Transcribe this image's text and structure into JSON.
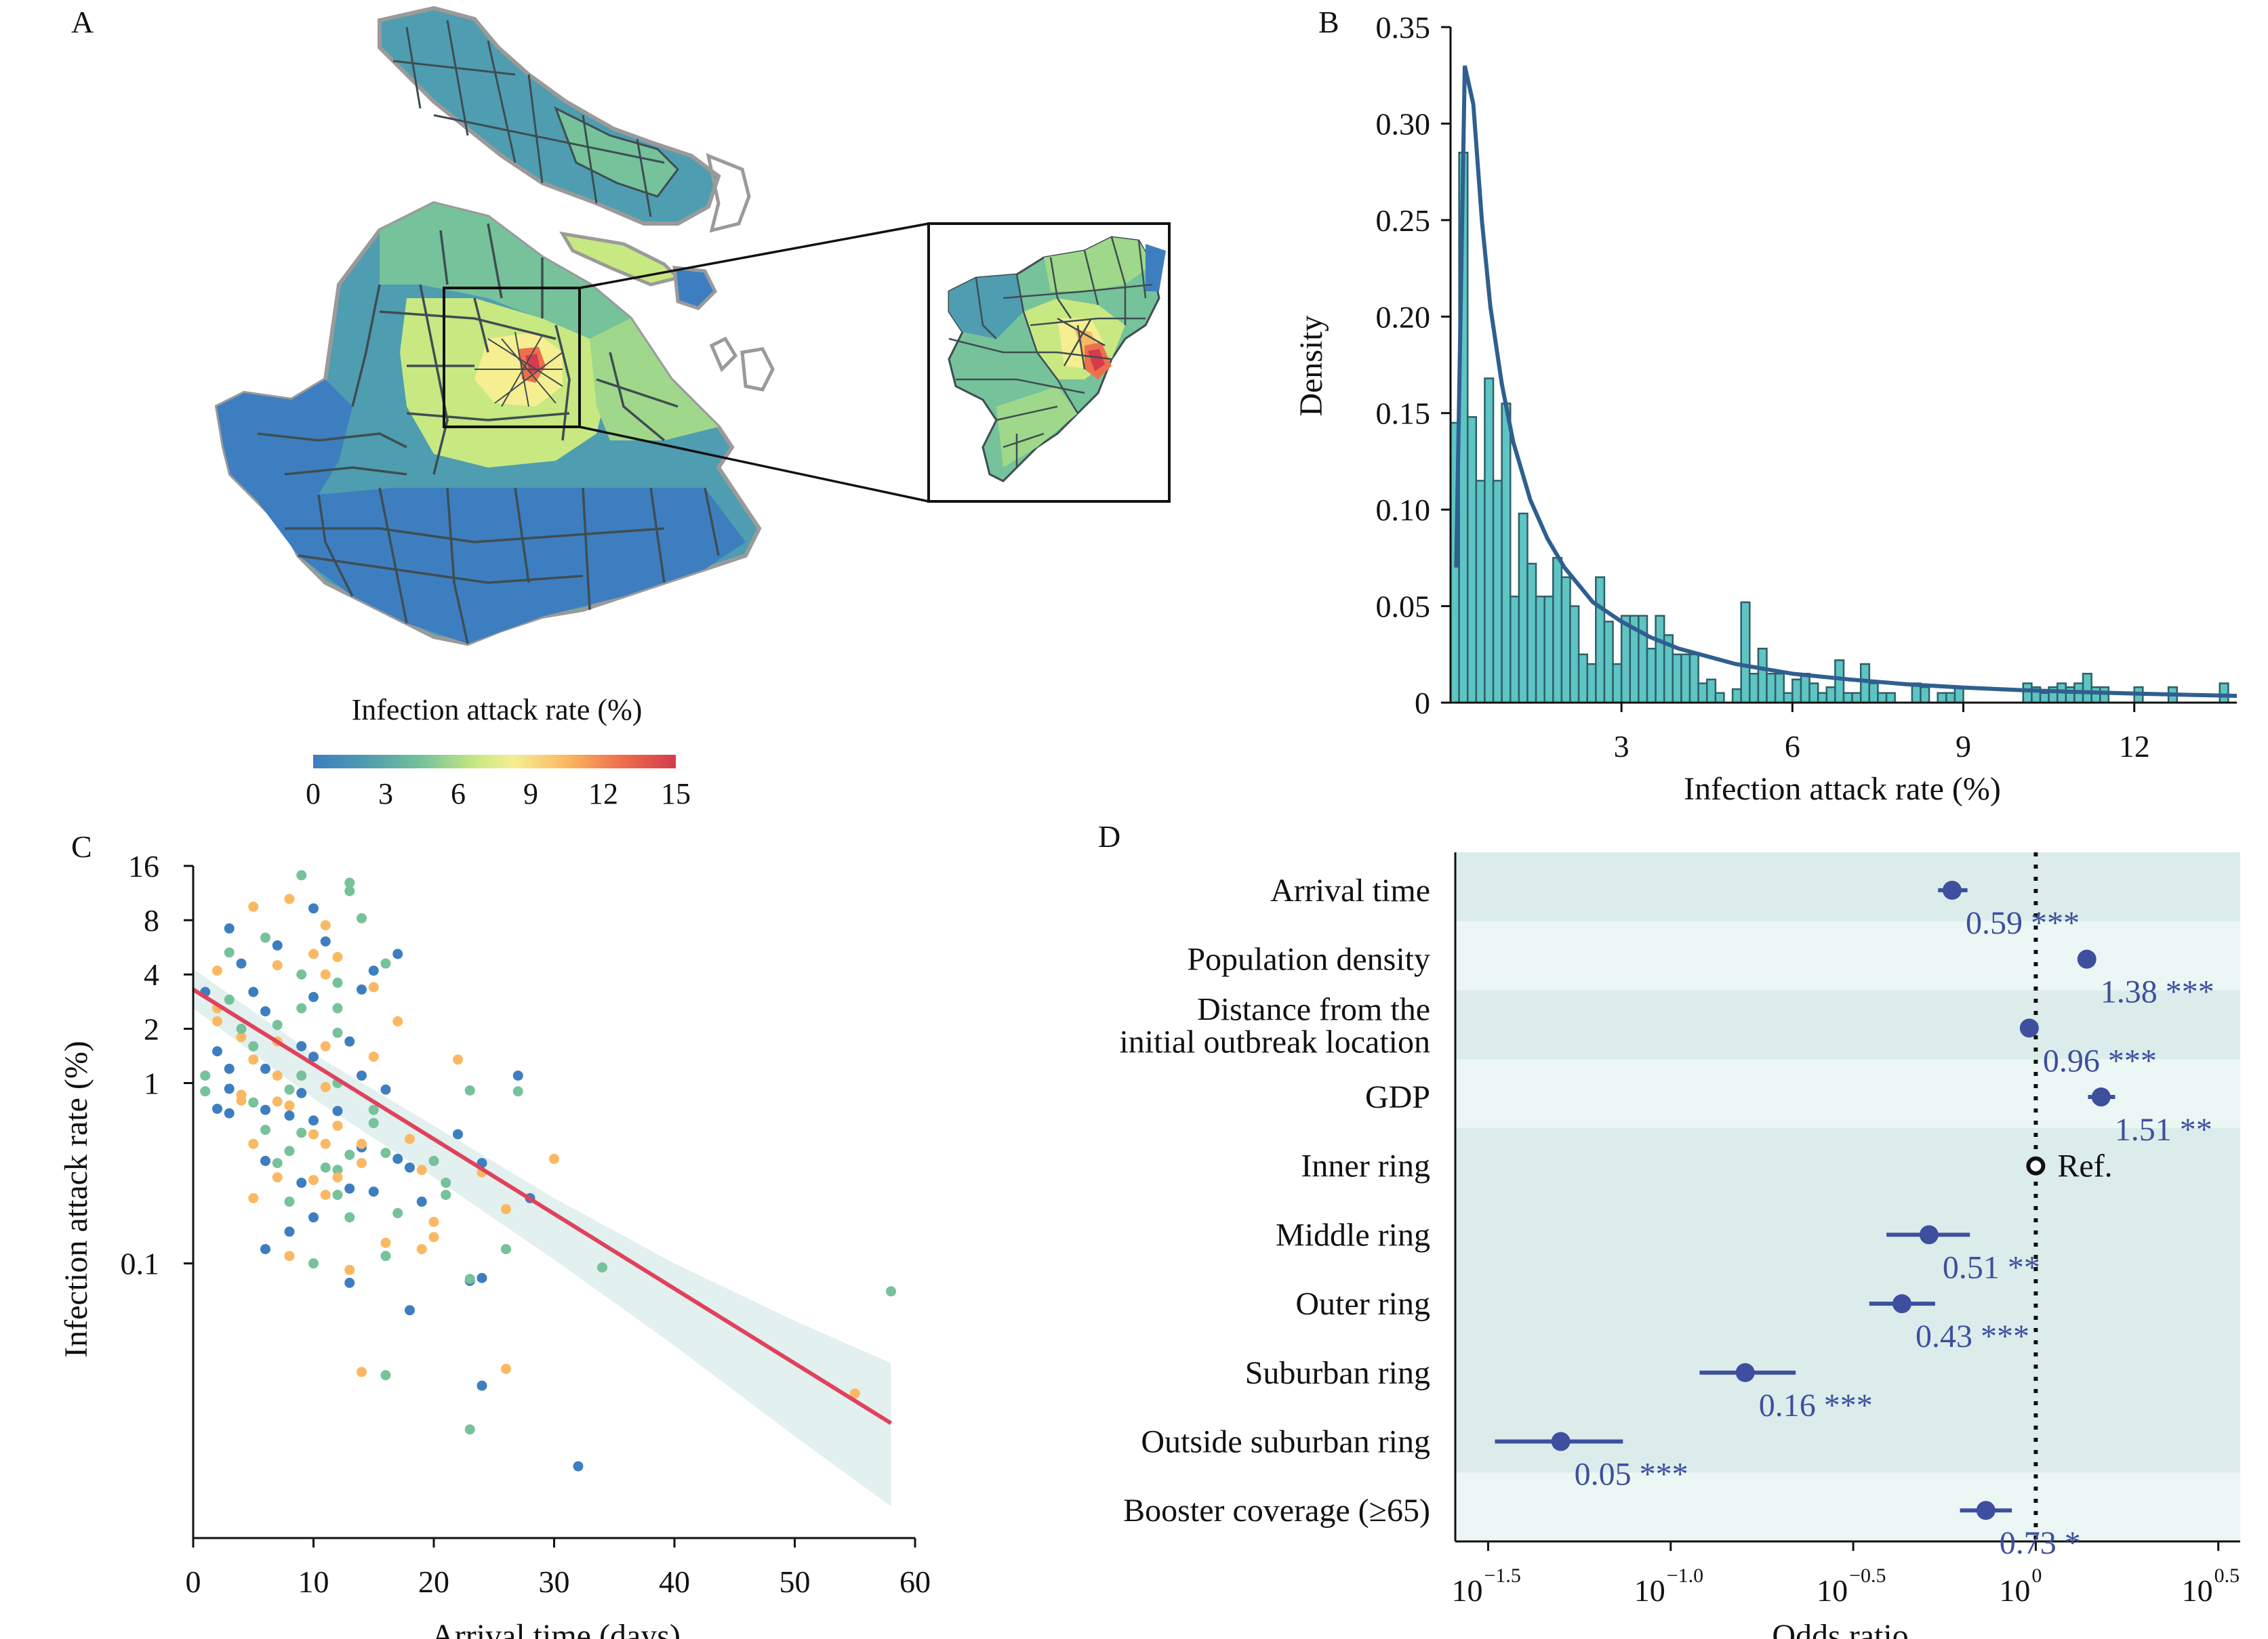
{
  "panels": {
    "a": "A",
    "b": "B",
    "c": "C",
    "d": "D"
  },
  "colors": {
    "scale": [
      "#3d7ec0",
      "#4f9db0",
      "#76c29a",
      "#c8e882",
      "#f5ef92",
      "#fbb862",
      "#ee6f4c",
      "#d63a4c"
    ],
    "region_outline": "#9a9a9a",
    "district_line": "#3f4d52",
    "hist_fill": "#5ec4c4",
    "hist_edge": "#2f5f66",
    "density_curve": "#2f5f8f",
    "fit_line": "#e0425c",
    "ci_band": "#cfe6e4",
    "point_blue": "#3d4f9e",
    "point_stripe_dark": "#dbeceb",
    "point_stripe_light": "#ecf6f5"
  },
  "map": {
    "legend_title": "Infection attack rate (%)",
    "ticks": [
      "0",
      "3",
      "6",
      "9",
      "12",
      "15"
    ]
  },
  "chart_data": [
    {
      "panel": "B",
      "type": "bar",
      "xlabel": "Infection attack rate (%)",
      "ylabel": "Density",
      "xlim": [
        0,
        13.8
      ],
      "ylim": [
        0,
        0.35
      ],
      "xticks": [
        "3",
        "6",
        "9",
        "12"
      ],
      "yticks": [
        "0",
        "0.05",
        "0.10",
        "0.15",
        "0.20",
        "0.25",
        "0.30",
        "0.35"
      ],
      "bin_width": 0.15,
      "values": [
        0.145,
        0.285,
        0.148,
        0.115,
        0.168,
        0.115,
        0.155,
        0.055,
        0.098,
        0.072,
        0.055,
        0.055,
        0.075,
        0.065,
        0.05,
        0.025,
        0.02,
        0.065,
        0.042,
        0.02,
        0.045,
        0.045,
        0.045,
        0.028,
        0.045,
        0.035,
        0.025,
        0.025,
        0.025,
        0.01,
        0.012,
        0.005,
        0.0,
        0.007,
        0.052,
        0.015,
        0.028,
        0.015,
        0.015,
        0.005,
        0.012,
        0.015,
        0.01,
        0.005,
        0.008,
        0.022,
        0.005,
        0.005,
        0.02,
        0.01,
        0.005,
        0.005,
        0.0,
        0.0,
        0.01,
        0.008,
        0.0,
        0.005,
        0.005,
        0.008,
        0.0,
        0.0,
        0.0,
        0.0,
        0.0,
        0.0,
        0.0,
        0.01,
        0.008,
        0.005,
        0.008,
        0.01,
        0.008,
        0.01,
        0.015,
        0.008,
        0.008,
        0.0,
        0.0,
        0.0,
        0.008,
        0.0,
        0.0,
        0.0,
        0.008,
        0.0,
        0.0,
        0.0,
        0.0,
        0.0,
        0.01
      ],
      "density_curve": {
        "x": [
          0.1,
          0.25,
          0.4,
          0.55,
          0.7,
          0.9,
          1.1,
          1.4,
          1.7,
          2.0,
          2.5,
          3.0,
          3.5,
          4.0,
          5.0,
          6.0,
          7.0,
          8.0,
          9.0,
          10.0,
          11.0,
          12.0,
          13.0,
          13.8
        ],
        "y": [
          0.07,
          0.33,
          0.31,
          0.25,
          0.205,
          0.165,
          0.135,
          0.105,
          0.085,
          0.07,
          0.052,
          0.042,
          0.034,
          0.028,
          0.02,
          0.015,
          0.012,
          0.0095,
          0.0078,
          0.0065,
          0.0055,
          0.0047,
          0.004,
          0.0035
        ]
      }
    },
    {
      "panel": "C",
      "type": "scatter",
      "xlabel": "Arrival time (days)",
      "ylabel": "Infection attack rate (%)",
      "xlim": [
        0,
        60
      ],
      "ylim": [
        0.003,
        16
      ],
      "ylog": true,
      "xticks": [
        "0",
        "10",
        "20",
        "30",
        "40",
        "50",
        "60"
      ],
      "yticks": [
        "0.1",
        "1",
        "2",
        "4",
        "8",
        "16"
      ],
      "points": [
        [
          1,
          3.2
        ],
        [
          2,
          2.6
        ],
        [
          3,
          2.9
        ],
        [
          4,
          4.6
        ],
        [
          5,
          9.5
        ],
        [
          6,
          6.4
        ],
        [
          7,
          5.8
        ],
        [
          8,
          10.5
        ],
        [
          9,
          14.2
        ],
        [
          10,
          9.3
        ],
        [
          11,
          7.5
        ],
        [
          13,
          12.9
        ],
        [
          14,
          3.3
        ],
        [
          15,
          3.4
        ],
        [
          16,
          4.6
        ],
        [
          17,
          5.2
        ],
        [
          17,
          2.2
        ],
        [
          14,
          8.2
        ],
        [
          3,
          7.2
        ],
        [
          2,
          2.2
        ],
        [
          1,
          1.1
        ],
        [
          3,
          1.2
        ],
        [
          4,
          1.8
        ],
        [
          5,
          1.6
        ],
        [
          6,
          2.5
        ],
        [
          7,
          1.7
        ],
        [
          9,
          1.1
        ],
        [
          10,
          1.4
        ],
        [
          11,
          1.6
        ],
        [
          12,
          1.9
        ],
        [
          13,
          1.7
        ],
        [
          8,
          0.75
        ],
        [
          9,
          0.53
        ],
        [
          10,
          0.62
        ],
        [
          11,
          0.46
        ],
        [
          12,
          0.33
        ],
        [
          13,
          0.26
        ],
        [
          14,
          0.36
        ],
        [
          15,
          0.71
        ],
        [
          16,
          0.92
        ],
        [
          18,
          0.49
        ],
        [
          20,
          0.37
        ],
        [
          22,
          0.52
        ],
        [
          22,
          1.35
        ],
        [
          23,
          0.91
        ],
        [
          27,
          1.1
        ],
        [
          5,
          0.23
        ],
        [
          8,
          0.22
        ],
        [
          10,
          0.18
        ],
        [
          12,
          0.3
        ],
        [
          13,
          0.18
        ],
        [
          15,
          0.25
        ],
        [
          16,
          0.13
        ],
        [
          17,
          0.19
        ],
        [
          19,
          0.22
        ],
        [
          20,
          0.17
        ],
        [
          21,
          0.28
        ],
        [
          23,
          0.08
        ],
        [
          24,
          0.32
        ],
        [
          26,
          0.12
        ],
        [
          28,
          0.23
        ],
        [
          30,
          0.38
        ],
        [
          34,
          0.095
        ],
        [
          6,
          0.12
        ],
        [
          8,
          0.11
        ],
        [
          10,
          0.1
        ],
        [
          13,
          0.078
        ],
        [
          13,
          0.092
        ],
        [
          16,
          0.11
        ],
        [
          18,
          0.055
        ],
        [
          20,
          0.14
        ],
        [
          23,
          0.082
        ],
        [
          24,
          0.083
        ],
        [
          14,
          0.025
        ],
        [
          16,
          0.024
        ],
        [
          24,
          0.021
        ],
        [
          26,
          0.026
        ],
        [
          23,
          0.012
        ],
        [
          32,
          0.0075
        ],
        [
          55,
          0.019
        ],
        [
          58,
          0.07
        ],
        [
          3,
          0.93
        ],
        [
          4,
          0.86
        ],
        [
          5,
          0.78
        ],
        [
          6,
          0.71
        ],
        [
          7,
          0.79
        ],
        [
          8,
          0.92
        ],
        [
          9,
          0.88
        ],
        [
          11,
          0.95
        ],
        [
          12,
          1.0
        ],
        [
          6,
          0.37
        ],
        [
          7,
          0.3
        ],
        [
          8,
          0.42
        ],
        [
          9,
          0.28
        ],
        [
          11,
          0.24
        ],
        [
          13,
          0.4
        ],
        [
          14,
          0.44
        ],
        [
          12,
          0.58
        ],
        [
          16,
          0.41
        ],
        [
          18,
          0.34
        ],
        [
          19,
          0.12
        ],
        [
          4,
          2.0
        ],
        [
          6,
          1.2
        ],
        [
          7,
          1.1
        ],
        [
          9,
          2.6
        ],
        [
          10,
          3.0
        ],
        [
          11,
          4.0
        ],
        [
          12,
          3.6
        ],
        [
          15,
          4.2
        ],
        [
          2,
          4.2
        ],
        [
          3,
          5.3
        ],
        [
          5,
          3.2
        ],
        [
          7,
          4.5
        ],
        [
          9,
          4.0
        ],
        [
          11,
          6.1
        ],
        [
          12,
          5.0
        ],
        [
          13,
          11.6
        ],
        [
          14,
          1.1
        ],
        [
          15,
          1.4
        ],
        [
          1,
          0.9
        ],
        [
          2,
          0.72
        ],
        [
          4,
          0.8
        ],
        [
          6,
          0.55
        ],
        [
          8,
          0.66
        ],
        [
          10,
          0.52
        ],
        [
          11,
          0.34
        ],
        [
          12,
          0.7
        ],
        [
          14,
          0.46
        ],
        [
          15,
          0.6
        ],
        [
          17,
          0.38
        ],
        [
          19,
          0.33
        ],
        [
          21,
          0.24
        ],
        [
          24,
          0.36
        ],
        [
          26,
          0.2
        ],
        [
          27,
          0.9
        ],
        [
          2,
          1.5
        ],
        [
          5,
          1.35
        ],
        [
          7,
          2.1
        ],
        [
          9,
          1.6
        ],
        [
          10,
          5.2
        ],
        [
          12,
          2.6
        ],
        [
          3,
          0.68
        ],
        [
          5,
          0.46
        ],
        [
          7,
          0.36
        ],
        [
          8,
          0.15
        ],
        [
          10,
          0.29
        ],
        [
          12,
          0.24
        ]
      ],
      "fit": {
        "x": [
          0,
          58
        ],
        "y": [
          3.3,
          0.013
        ]
      },
      "ci_lower": [
        [
          0,
          2.6
        ],
        [
          10,
          0.82
        ],
        [
          20,
          0.3
        ],
        [
          30,
          0.105
        ],
        [
          40,
          0.035
        ],
        [
          50,
          0.011
        ],
        [
          58,
          0.0045
        ]
      ],
      "ci_upper": [
        [
          0,
          4.3
        ],
        [
          10,
          1.45
        ],
        [
          20,
          0.58
        ],
        [
          30,
          0.23
        ],
        [
          40,
          0.1
        ],
        [
          50,
          0.048
        ],
        [
          58,
          0.028
        ]
      ]
    },
    {
      "panel": "D",
      "type": "scatter",
      "xlabel": "Odds ratio",
      "xlog": true,
      "xticks": [
        "10",
        "10",
        "10",
        "10",
        "10"
      ],
      "xtick_exponents": [
        "−1.5",
        "−1.0",
        "−0.5",
        "0",
        "0.5"
      ],
      "reference_line": 1,
      "rows": [
        {
          "label": "Arrival time",
          "or": 0.59,
          "lo": 0.54,
          "hi": 0.65,
          "text": "0.59 ***"
        },
        {
          "label": "Population density",
          "or": 1.38,
          "lo": 1.31,
          "hi": 1.46,
          "text": "1.38 ***"
        },
        {
          "label": "Distance from the initial outbreak location",
          "or": 0.96,
          "lo": 0.94,
          "hi": 0.98,
          "text": "0.96 ***"
        },
        {
          "label": "GDP",
          "or": 1.51,
          "lo": 1.39,
          "hi": 1.65,
          "text": "1.51 **"
        },
        {
          "label": "Inner ring",
          "or": 1.0,
          "lo": 1.0,
          "hi": 1.0,
          "text": "Ref."
        },
        {
          "label": "Middle ring",
          "or": 0.51,
          "lo": 0.39,
          "hi": 0.66,
          "text": "0.51 **"
        },
        {
          "label": "Outer ring",
          "or": 0.43,
          "lo": 0.35,
          "hi": 0.53,
          "text": "0.43 ***"
        },
        {
          "label": "Suburban ring",
          "or": 0.16,
          "lo": 0.12,
          "hi": 0.22,
          "text": "0.16 ***"
        },
        {
          "label": "Outside suburban ring",
          "or": 0.05,
          "lo": 0.033,
          "hi": 0.074,
          "text": "0.05 ***"
        },
        {
          "label": "Booster coverage (≥65)",
          "or": 0.73,
          "lo": 0.62,
          "hi": 0.86,
          "text": "0.73 *"
        }
      ]
    }
  ]
}
